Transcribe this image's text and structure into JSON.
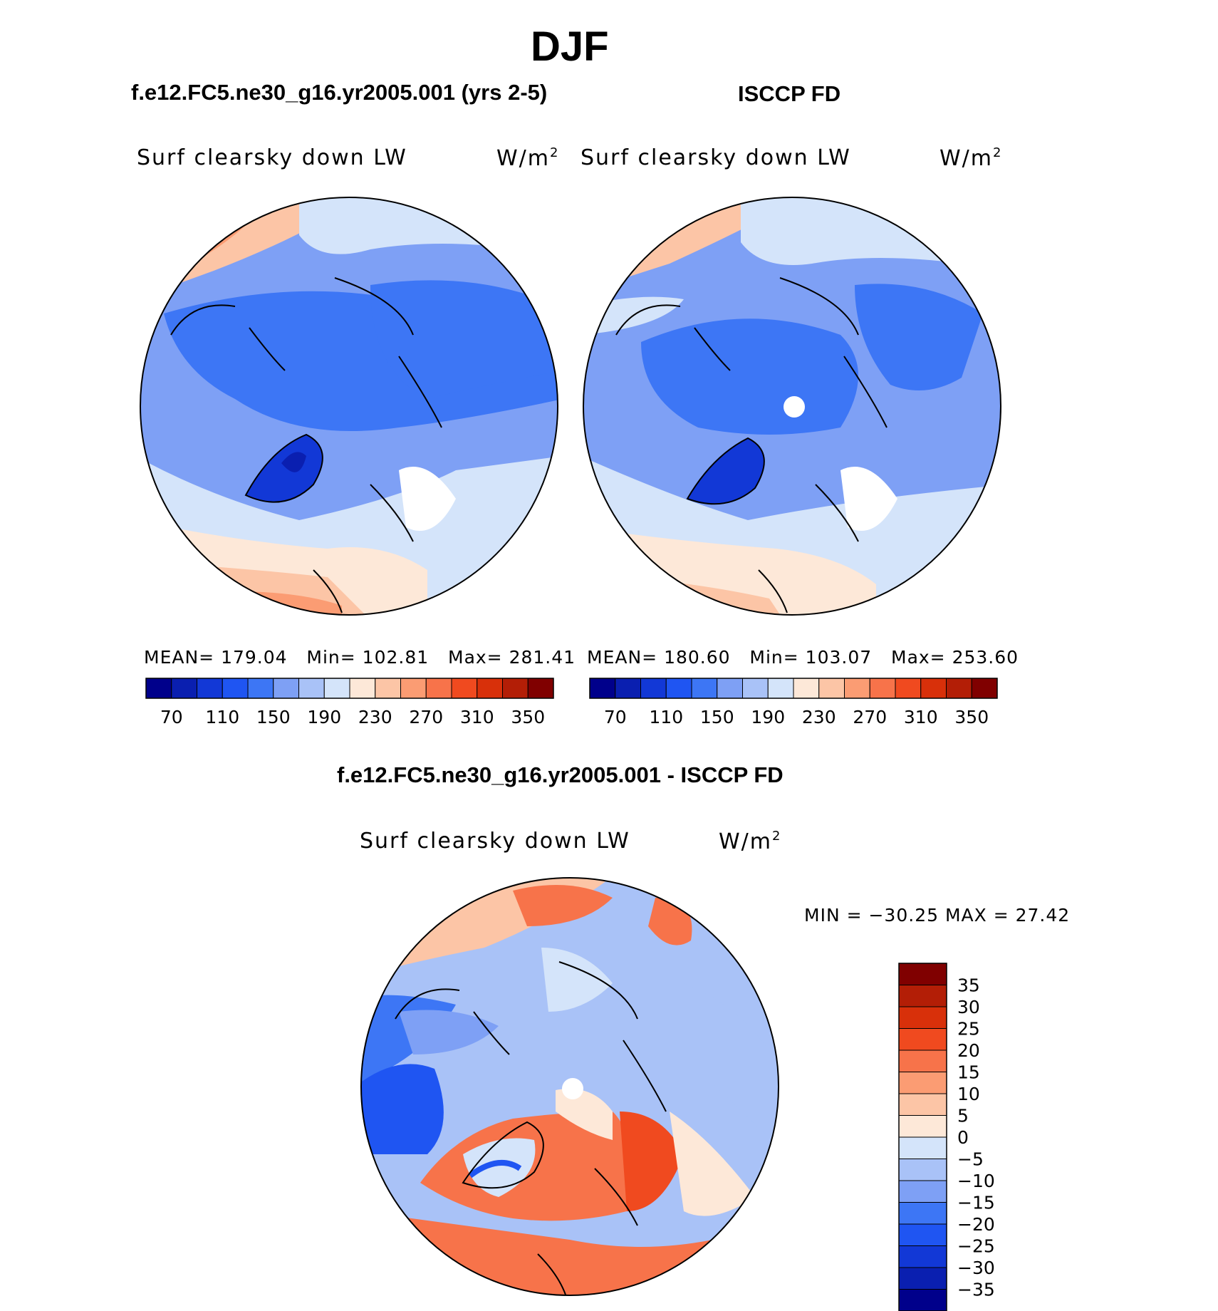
{
  "figure": {
    "title": "DJF",
    "top_left": {
      "title": "f.e12.FC5.ne30_g16.yr2005.001 (yrs 2-5)",
      "variable": "Surf clearsky down LW",
      "units_base": "W/m",
      "units_exp": "2",
      "stats": {
        "mean_label": "MEAN=",
        "mean": "179.04",
        "min_label": "Min=",
        "min": "102.81",
        "max_label": "Max=",
        "max": "281.41"
      }
    },
    "top_right": {
      "title": "ISCCP FD",
      "variable": "Surf clearsky down LW",
      "units_base": "W/m",
      "units_exp": "2",
      "stats": {
        "mean_label": "MEAN=",
        "mean": "180.60",
        "min_label": "Min=",
        "min": "103.07",
        "max_label": "Max=",
        "max": "253.60"
      }
    },
    "bottom": {
      "title": "f.e12.FC5.ne30_g16.yr2005.001 - ISCCP FD",
      "variable": "Surf clearsky down LW",
      "units_base": "W/m",
      "units_exp": "2",
      "minmax": "MIN = −30.25 MAX =  27.42"
    }
  },
  "colorbars": {
    "abs_ticks": [
      "70",
      "110",
      "150",
      "190",
      "230",
      "270",
      "310",
      "350"
    ],
    "abs_colors": [
      "#00008b",
      "#0a1fb0",
      "#1238d6",
      "#1f55f2",
      "#3d76f5",
      "#7ea0f5",
      "#a9c2f7",
      "#d4e4fa",
      "#fde8d8",
      "#fcc5a6",
      "#fb9c73",
      "#f7734a",
      "#f04a1f",
      "#d8300a",
      "#b31e06",
      "#800000"
    ],
    "diff_ticks": [
      "35",
      "30",
      "25",
      "20",
      "15",
      "10",
      "5",
      "0",
      "−5",
      "−10",
      "−15",
      "−20",
      "−25",
      "−30",
      "−35"
    ],
    "diff_colors": [
      "#800000",
      "#b31e06",
      "#d8300a",
      "#f04a1f",
      "#f7734a",
      "#fb9c73",
      "#fcc5a6",
      "#fde8d8",
      "#d4e4fa",
      "#a9c2f7",
      "#7ea0f5",
      "#3d76f5",
      "#1f55f2",
      "#1238d6",
      "#0a1fb0",
      "#00008b"
    ]
  },
  "colors": {
    "border": "#000000",
    "missing": "#ffffff"
  }
}
